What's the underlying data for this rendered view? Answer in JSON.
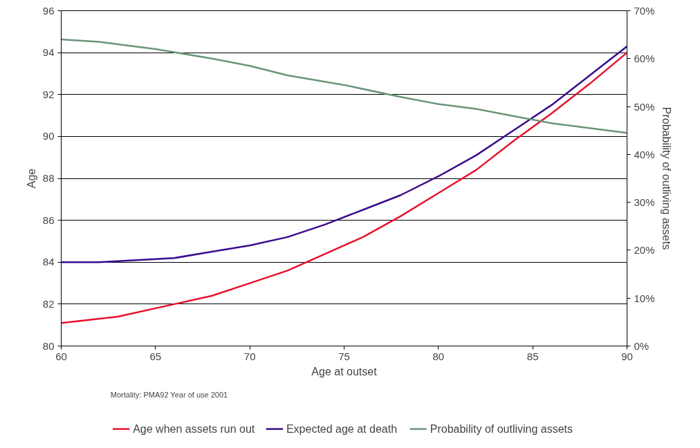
{
  "chart_data": {
    "type": "line",
    "xlabel": "Age at outset",
    "ylabel": "Age",
    "y2label": "Probability of outliving assets",
    "xlim": [
      60,
      90
    ],
    "xticks": [
      60,
      65,
      70,
      75,
      80,
      85,
      90
    ],
    "ylim": [
      80,
      96
    ],
    "yticks": [
      80,
      82,
      84,
      86,
      88,
      90,
      92,
      94,
      96
    ],
    "y2lim": [
      0,
      70
    ],
    "y2ticks": [
      {
        "value": 0,
        "label": "0%"
      },
      {
        "value": 10,
        "label": "10%"
      },
      {
        "value": 20,
        "label": "20%"
      },
      {
        "value": 30,
        "label": "30%"
      },
      {
        "value": 40,
        "label": "40%"
      },
      {
        "value": 50,
        "label": "50%"
      },
      {
        "value": 60,
        "label": "60%"
      },
      {
        "value": 70,
        "label": "70%"
      }
    ],
    "grid": "y",
    "legend": "bottom",
    "marker": "none",
    "line_style": "solid",
    "annotations": [
      "Mortality:  PMA92 Year of use 2001"
    ],
    "series": [
      {
        "name": "Age when assets run out",
        "color": "#e8112d",
        "x": [
          60,
          63,
          66,
          68,
          70,
          72,
          74,
          76,
          78,
          80,
          82,
          84,
          86,
          88,
          90
        ],
        "values": [
          81.1,
          81.4,
          82.0,
          82.4,
          83.0,
          83.6,
          84.4,
          85.2,
          86.2,
          87.3,
          88.4,
          89.8,
          91.1,
          92.5,
          94.0
        ]
      },
      {
        "name": "Expected age at death",
        "color": "#3a0a8c",
        "x": [
          60,
          62,
          64,
          66,
          68,
          70,
          72,
          74,
          76,
          78,
          80,
          82,
          84,
          86,
          88,
          90
        ],
        "values": [
          84.0,
          84.0,
          84.1,
          84.2,
          84.5,
          84.8,
          85.2,
          85.8,
          86.5,
          87.2,
          88.1,
          89.1,
          90.3,
          91.5,
          92.9,
          94.3
        ]
      },
      {
        "name": "Probability of outliving assets",
        "color": "#6b9479",
        "axis": "y2",
        "x": [
          60,
          62,
          63,
          65,
          68,
          70,
          72,
          75,
          78,
          80,
          82,
          84,
          86,
          87,
          88,
          90
        ],
        "values": [
          64,
          63.5,
          63,
          62,
          60,
          58.5,
          56.5,
          54.5,
          52,
          50.5,
          49.5,
          48,
          46.5,
          46,
          45.5,
          44.5
        ]
      }
    ]
  }
}
